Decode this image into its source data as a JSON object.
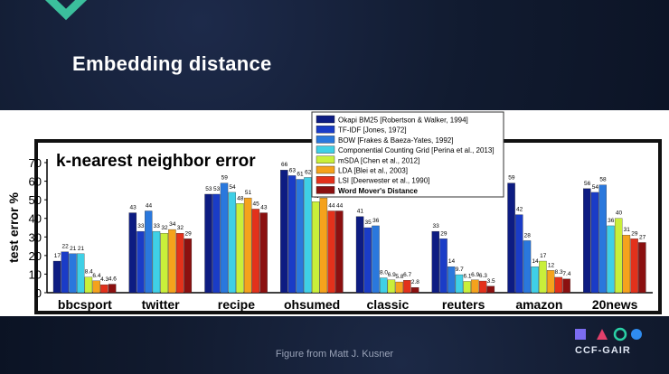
{
  "slide": {
    "title": "Embedding  distance",
    "caption": "Figure from Matt J. Kusner",
    "logo_text": "CCF-GAIR"
  },
  "colors": {
    "background": "#0f1a2e",
    "title_text": "#ffffff",
    "accent_chevron": "#3bbf9c"
  },
  "chart_data": {
    "type": "bar",
    "title": "k-nearest neighbor error",
    "xlabel": "",
    "ylabel": "test error %",
    "ylim": [
      0,
      70
    ],
    "yticks": [
      0,
      10,
      20,
      30,
      40,
      50,
      60,
      70
    ],
    "legend_position": "top-right",
    "categories": [
      "bbcsport",
      "twitter",
      "recipe",
      "ohsumed",
      "classic",
      "reuters",
      "amazon",
      "20news"
    ],
    "series": [
      {
        "name": "Okapi BM25 [Robertson & Walker, 1994]",
        "color": "#0d1c82",
        "values": [
          17,
          43,
          53,
          66,
          41,
          33,
          59,
          56
        ]
      },
      {
        "name": "TF-IDF [Jones, 1972]",
        "color": "#1a3cc7",
        "values": [
          22,
          33,
          53,
          63,
          35,
          29,
          42,
          54
        ]
      },
      {
        "name": "BOW [Frakes & Baeza-Yates, 1992]",
        "color": "#2a78dd",
        "values": [
          21,
          44,
          59,
          61,
          36,
          14,
          28,
          58
        ]
      },
      {
        "name": "Componential Counting Grid [Perina et al., 2013]",
        "color": "#3fd0e6",
        "values": [
          21,
          33,
          54,
          62,
          8.0,
          9.7,
          14,
          36
        ]
      },
      {
        "name": "mSDA [Chen et al., 2012]",
        "color": "#c9ef3a",
        "values": [
          8.4,
          32,
          48,
          49,
          6.9,
          6.1,
          17,
          40
        ]
      },
      {
        "name": "LDA [Blei et al., 2003]",
        "color": "#f5a21c",
        "values": [
          6.4,
          34,
          51,
          51,
          5.8,
          6.9,
          12,
          31
        ]
      },
      {
        "name": "LSI [Deerwester et al., 1990]",
        "color": "#e3311b",
        "values": [
          4.3,
          32,
          45,
          44,
          6.7,
          6.3,
          8.3,
          29
        ]
      },
      {
        "name": "Word Mover's Distance",
        "color": "#8b1010",
        "values": [
          4.6,
          29,
          43,
          44,
          2.8,
          3.5,
          7.4,
          27
        ]
      }
    ],
    "data_labels": [
      [
        "17",
        "22",
        "21",
        "21",
        "8.4",
        "6.4",
        "4.3",
        "4.6"
      ],
      [
        "43",
        "33",
        "44",
        "33",
        "32",
        "34",
        "32",
        "29"
      ],
      [
        "53",
        "53",
        "59",
        "54",
        "48",
        "51",
        "45",
        "43"
      ],
      [
        "66",
        "63",
        "61",
        "62",
        "49",
        "51",
        "44",
        "44"
      ],
      [
        "41",
        "35",
        "36",
        "8.0",
        "6.9",
        "5.8",
        "6.7",
        "2.8"
      ],
      [
        "33",
        "29",
        "14",
        "9.7",
        "6.1",
        "6.9",
        "6.3",
        "3.5"
      ],
      [
        "59",
        "42",
        "28",
        "14",
        "17",
        "12",
        "8.3",
        "7.4"
      ],
      [
        "56",
        "54",
        "58",
        "36",
        "40",
        "31",
        "29",
        "27"
      ]
    ]
  }
}
